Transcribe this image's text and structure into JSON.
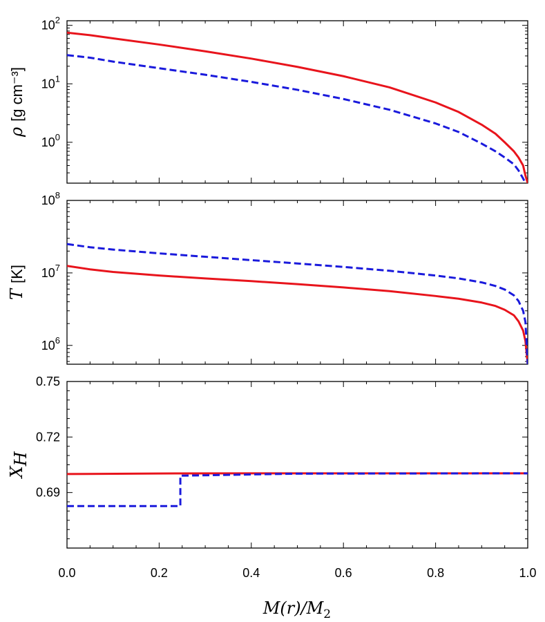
{
  "chart_data": [
    {
      "type": "line",
      "ylabel_symbol": "ρ",
      "ylabel_unit": "[g cm⁻³]",
      "yscale": "log",
      "ylim": [
        0.2,
        120
      ],
      "xlim": [
        0.0,
        1.0
      ],
      "yticks": [
        {
          "value": 1,
          "mant": "10",
          "exp": "0"
        },
        {
          "value": 10,
          "mant": "10",
          "exp": "1"
        },
        {
          "value": 100,
          "mant": "10",
          "exp": "2"
        }
      ],
      "series": [
        {
          "color": "#e8141c",
          "style": "solid",
          "x": [
            0.0,
            0.05,
            0.1,
            0.2,
            0.3,
            0.4,
            0.5,
            0.6,
            0.7,
            0.8,
            0.85,
            0.9,
            0.93,
            0.95,
            0.97,
            0.98,
            0.99,
            0.995,
            1.0
          ],
          "y": [
            75,
            68,
            60,
            47,
            36,
            27,
            19.5,
            13.5,
            8.7,
            4.8,
            3.3,
            2.0,
            1.4,
            1.0,
            0.7,
            0.55,
            0.4,
            0.27,
            0.2
          ]
        },
        {
          "color": "#1a1adc",
          "style": "dashed",
          "x": [
            0.0,
            0.05,
            0.1,
            0.2,
            0.3,
            0.4,
            0.5,
            0.6,
            0.7,
            0.8,
            0.85,
            0.9,
            0.93,
            0.95,
            0.97,
            0.98,
            0.99,
            0.995
          ],
          "y": [
            31,
            28,
            24,
            18.5,
            14.3,
            10.8,
            7.9,
            5.5,
            3.6,
            2.1,
            1.5,
            0.95,
            0.7,
            0.55,
            0.42,
            0.33,
            0.24,
            0.2
          ]
        }
      ]
    },
    {
      "type": "line",
      "ylabel_symbol": "T",
      "ylabel_unit": "[K]",
      "yscale": "log",
      "ylim": [
        550000,
        100000000
      ],
      "xlim": [
        0.0,
        1.0
      ],
      "yticks": [
        {
          "value": 1000000,
          "mant": "10",
          "exp": "6"
        },
        {
          "value": 10000000,
          "mant": "10",
          "exp": "7"
        },
        {
          "value": 100000000,
          "mant": "10",
          "exp": "8"
        }
      ],
      "series": [
        {
          "color": "#e8141c",
          "style": "solid",
          "x": [
            0.0,
            0.05,
            0.1,
            0.2,
            0.3,
            0.4,
            0.5,
            0.6,
            0.7,
            0.8,
            0.85,
            0.9,
            0.93,
            0.95,
            0.97,
            0.98,
            0.99,
            0.995,
            1.0
          ],
          "y": [
            12500000,
            11200000,
            10300000,
            9200000,
            8400000,
            7700000,
            7000000,
            6300000,
            5600000,
            4800000,
            4400000,
            3900000,
            3500000,
            3100000,
            2600000,
            2150000,
            1600000,
            1150000,
            550000
          ]
        },
        {
          "color": "#1a1adc",
          "style": "dashed",
          "x": [
            0.0,
            0.05,
            0.1,
            0.2,
            0.3,
            0.4,
            0.5,
            0.6,
            0.7,
            0.8,
            0.85,
            0.9,
            0.93,
            0.95,
            0.97,
            0.98,
            0.99,
            0.995,
            1.0
          ],
          "y": [
            25000000,
            22600000,
            21000000,
            18600000,
            16700000,
            15000000,
            13500000,
            12100000,
            10700000,
            9200000,
            8400000,
            7400000,
            6600000,
            5900000,
            4900000,
            4100000,
            3000000,
            2100000,
            550000
          ]
        }
      ]
    },
    {
      "type": "line",
      "ylabel_symbol": "X",
      "ylabel_sub": "H",
      "yscale": "linear",
      "ylim": [
        0.66,
        0.75
      ],
      "xlim": [
        0.0,
        1.0
      ],
      "yticks": [
        {
          "value": 0.69,
          "label": "0.69"
        },
        {
          "value": 0.72,
          "label": "0.72"
        },
        {
          "value": 0.75,
          "label": "0.75"
        }
      ],
      "series": [
        {
          "color": "#e8141c",
          "style": "solid",
          "x": [
            0.0,
            0.2,
            0.4,
            1.0
          ],
          "y": [
            0.7,
            0.7003,
            0.7004,
            0.7004
          ]
        },
        {
          "color": "#1a1adc",
          "style": "dashed",
          "x": [
            0.0,
            0.243,
            0.243,
            0.246,
            0.246,
            0.5,
            1.0
          ],
          "y": [
            0.6827,
            0.6827,
            0.6827,
            0.6827,
            0.6991,
            0.7002,
            0.7004
          ]
        }
      ]
    }
  ],
  "xticks": [
    "0.0",
    "0.2",
    "0.4",
    "0.6",
    "0.8",
    "1.0"
  ],
  "xtick_values": [
    0.0,
    0.2,
    0.4,
    0.6,
    0.8,
    1.0
  ],
  "xlabel": "M(r)/M",
  "xlabel_sub": "2"
}
